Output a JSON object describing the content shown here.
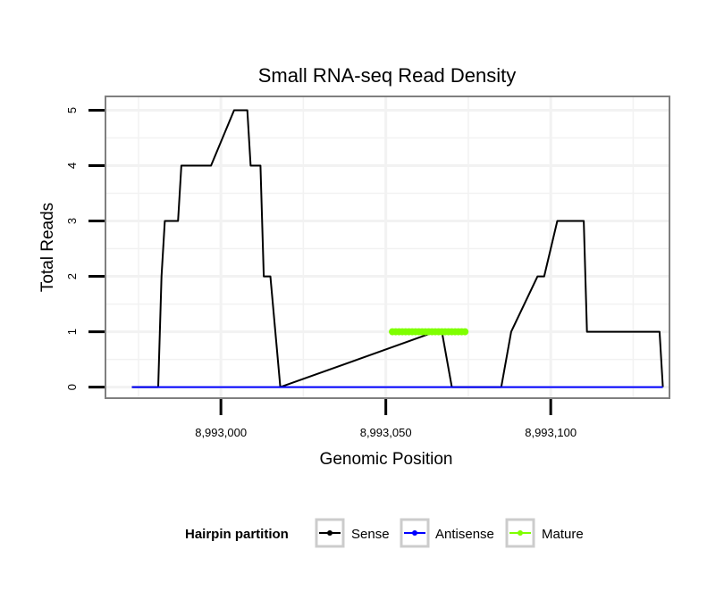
{
  "chart_data": {
    "type": "line",
    "title": "Small RNA-seq Read Density",
    "xlabel": "Genomic Position",
    "ylabel": "Total Reads",
    "xlim": [
      8992965,
      8993136
    ],
    "ylim": [
      -0.2,
      5.25
    ],
    "x_ticks": [
      8993000,
      8993050,
      8993100
    ],
    "x_tick_labels": [
      "8,993,000",
      "8,993,050",
      "8,993,100"
    ],
    "y_ticks": [
      0,
      1,
      2,
      3,
      4,
      5
    ],
    "y_tick_labels": [
      "0",
      "1",
      "2",
      "3",
      "4",
      "5"
    ],
    "grid": true,
    "legend": {
      "title": "Hairpin partition",
      "position": "bottom",
      "entries": [
        "Sense",
        "Antisense",
        "Mature"
      ]
    },
    "series": [
      {
        "name": "Sense",
        "color": "#000000",
        "x": [
          8992973,
          8992981,
          8992982,
          8992983,
          8992987,
          8992988,
          8992989,
          8992995,
          8992996,
          8992997,
          8993004,
          8993005,
          8993008,
          8993009,
          8993012,
          8993013,
          8993014,
          8993015,
          8993018,
          8993065,
          8993066,
          8993067,
          8993070,
          8993073,
          8993085,
          8993088,
          8993096,
          8993097,
          8993098,
          8993102,
          8993103,
          8993104,
          8993106,
          8993107,
          8993108,
          8993110,
          8993111,
          8993115,
          8993116,
          8993117,
          8993118,
          8993120,
          8993121,
          8993123,
          8993124,
          8993125,
          8993127,
          8993129,
          8993133,
          8993134
        ],
        "y": [
          0,
          0,
          2,
          3,
          3,
          4,
          4,
          4,
          4,
          4,
          5,
          5,
          5,
          4,
          4,
          2,
          2,
          2,
          0,
          1,
          1,
          1,
          0,
          0,
          0,
          1,
          2,
          2,
          2,
          3,
          3,
          3,
          3,
          3,
          3,
          3,
          1,
          1,
          1,
          1,
          1,
          1,
          1,
          1,
          1,
          1,
          1,
          1,
          1,
          0
        ]
      },
      {
        "name": "Antisense",
        "color": "#0000ff",
        "x": [
          8992973,
          8993134
        ],
        "y": [
          0,
          0
        ]
      },
      {
        "name": "Mature",
        "color": "#7fff00",
        "x": [
          8993052,
          8993053,
          8993054,
          8993055,
          8993056,
          8993057,
          8993058,
          8993059,
          8993060,
          8993061,
          8993062,
          8993063,
          8993064,
          8993065,
          8993066,
          8993067,
          8993068,
          8993069,
          8993070,
          8993071,
          8993072,
          8993073,
          8993074
        ],
        "y": [
          1,
          1,
          1,
          1,
          1,
          1,
          1,
          1,
          1,
          1,
          1,
          1,
          1,
          1,
          1,
          1,
          1,
          1,
          1,
          1,
          1,
          1,
          1
        ]
      }
    ]
  }
}
